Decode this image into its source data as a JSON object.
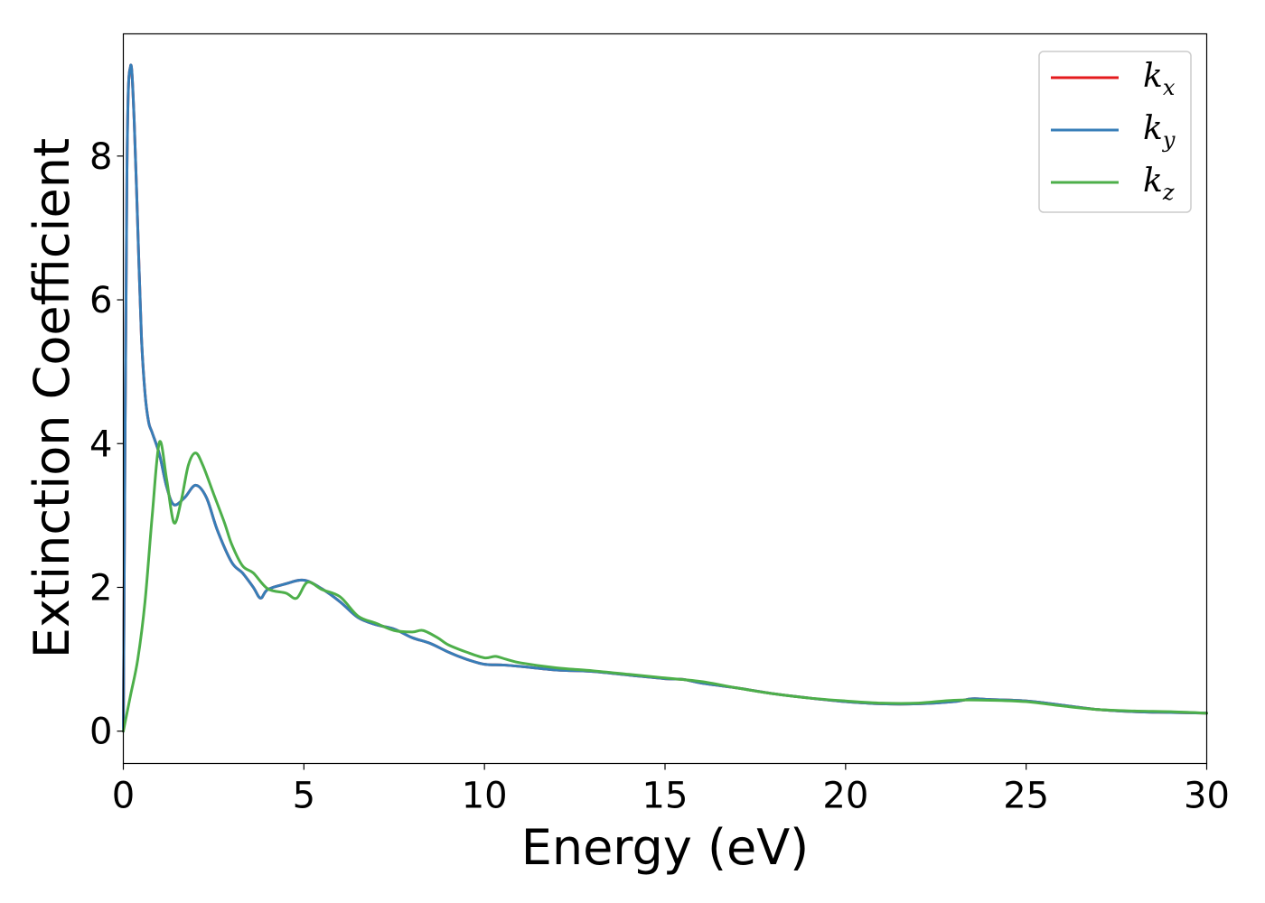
{
  "chart_data": {
    "type": "line",
    "title": "",
    "xlabel": "Energy (eV)",
    "ylabel": "Extinction Coefficient",
    "xlim": [
      0,
      30
    ],
    "ylim": [
      -0.45,
      9.7
    ],
    "xticks": [
      0,
      5,
      10,
      15,
      20,
      25,
      30
    ],
    "yticks": [
      0,
      2,
      4,
      6,
      8
    ],
    "grid": false,
    "legend_position": "top-right",
    "series": [
      {
        "name": "k",
        "subscript": "x",
        "color": "#e41a1c",
        "x": [
          0,
          0.1,
          0.2,
          0.3,
          0.4,
          0.5,
          0.6,
          0.7,
          0.8,
          1.0,
          1.2,
          1.4,
          1.7,
          2.0,
          2.3,
          2.6,
          3.0,
          3.3,
          3.6,
          3.8,
          4.0,
          4.5,
          5.0,
          5.5,
          6.0,
          6.5,
          7.0,
          7.5,
          8.0,
          8.5,
          9.0,
          9.5,
          10.0,
          10.5,
          11.0,
          12.0,
          13.0,
          14.0,
          15.0,
          15.5,
          16.0,
          17.0,
          18.0,
          19.0,
          20.0,
          21.0,
          22.0,
          23.0,
          23.5,
          24.0,
          25.0,
          26.0,
          27.0,
          28.0,
          29.0,
          30.0
        ],
        "y": [
          0.0,
          7.8,
          9.25,
          8.5,
          7.0,
          5.5,
          4.7,
          4.3,
          4.15,
          3.85,
          3.4,
          3.15,
          3.25,
          3.42,
          3.25,
          2.8,
          2.35,
          2.2,
          2.0,
          1.85,
          1.97,
          2.05,
          2.1,
          1.98,
          1.8,
          1.58,
          1.48,
          1.42,
          1.3,
          1.22,
          1.1,
          1.0,
          0.93,
          0.92,
          0.9,
          0.85,
          0.83,
          0.78,
          0.73,
          0.72,
          0.67,
          0.6,
          0.52,
          0.46,
          0.41,
          0.38,
          0.38,
          0.41,
          0.45,
          0.44,
          0.42,
          0.36,
          0.3,
          0.27,
          0.26,
          0.25
        ]
      },
      {
        "name": "k",
        "subscript": "y",
        "color": "#377eb8",
        "x": [
          0,
          0.1,
          0.2,
          0.3,
          0.4,
          0.5,
          0.6,
          0.7,
          0.8,
          1.0,
          1.2,
          1.4,
          1.7,
          2.0,
          2.3,
          2.6,
          3.0,
          3.3,
          3.6,
          3.8,
          4.0,
          4.5,
          5.0,
          5.5,
          6.0,
          6.5,
          7.0,
          7.5,
          8.0,
          8.5,
          9.0,
          9.5,
          10.0,
          10.5,
          11.0,
          12.0,
          13.0,
          14.0,
          15.0,
          15.5,
          16.0,
          17.0,
          18.0,
          19.0,
          20.0,
          21.0,
          22.0,
          23.0,
          23.5,
          24.0,
          25.0,
          26.0,
          27.0,
          28.0,
          29.0,
          30.0
        ],
        "y": [
          0.0,
          7.8,
          9.25,
          8.5,
          7.0,
          5.5,
          4.7,
          4.3,
          4.15,
          3.85,
          3.4,
          3.15,
          3.25,
          3.42,
          3.25,
          2.8,
          2.35,
          2.2,
          2.0,
          1.85,
          1.97,
          2.05,
          2.1,
          1.98,
          1.8,
          1.58,
          1.48,
          1.42,
          1.3,
          1.22,
          1.1,
          1.0,
          0.93,
          0.92,
          0.9,
          0.85,
          0.83,
          0.78,
          0.73,
          0.72,
          0.67,
          0.6,
          0.52,
          0.46,
          0.41,
          0.38,
          0.38,
          0.41,
          0.45,
          0.44,
          0.42,
          0.36,
          0.3,
          0.27,
          0.26,
          0.25
        ]
      },
      {
        "name": "k",
        "subscript": "z",
        "color": "#4daf4a",
        "x": [
          0,
          0.2,
          0.4,
          0.6,
          0.8,
          1.0,
          1.2,
          1.4,
          1.6,
          1.8,
          2.0,
          2.2,
          2.5,
          2.8,
          3.0,
          3.3,
          3.6,
          4.0,
          4.5,
          4.8,
          5.1,
          5.5,
          6.0,
          6.5,
          7.0,
          7.5,
          8.0,
          8.3,
          8.7,
          9.0,
          9.5,
          10.0,
          10.3,
          10.6,
          11.0,
          12.0,
          13.0,
          14.0,
          15.0,
          16.0,
          17.0,
          18.0,
          19.0,
          20.0,
          21.0,
          22.0,
          23.0,
          24.0,
          25.0,
          26.0,
          27.0,
          28.0,
          29.0,
          30.0
        ],
        "y": [
          0.0,
          0.5,
          1.0,
          1.8,
          3.0,
          4.02,
          3.5,
          2.9,
          3.2,
          3.7,
          3.87,
          3.7,
          3.3,
          2.9,
          2.6,
          2.3,
          2.2,
          1.98,
          1.92,
          1.85,
          2.07,
          1.97,
          1.87,
          1.6,
          1.5,
          1.4,
          1.38,
          1.4,
          1.3,
          1.2,
          1.1,
          1.02,
          1.04,
          1.0,
          0.95,
          0.88,
          0.84,
          0.79,
          0.74,
          0.69,
          0.6,
          0.52,
          0.46,
          0.42,
          0.39,
          0.39,
          0.43,
          0.43,
          0.41,
          0.35,
          0.3,
          0.28,
          0.27,
          0.25
        ]
      }
    ]
  }
}
